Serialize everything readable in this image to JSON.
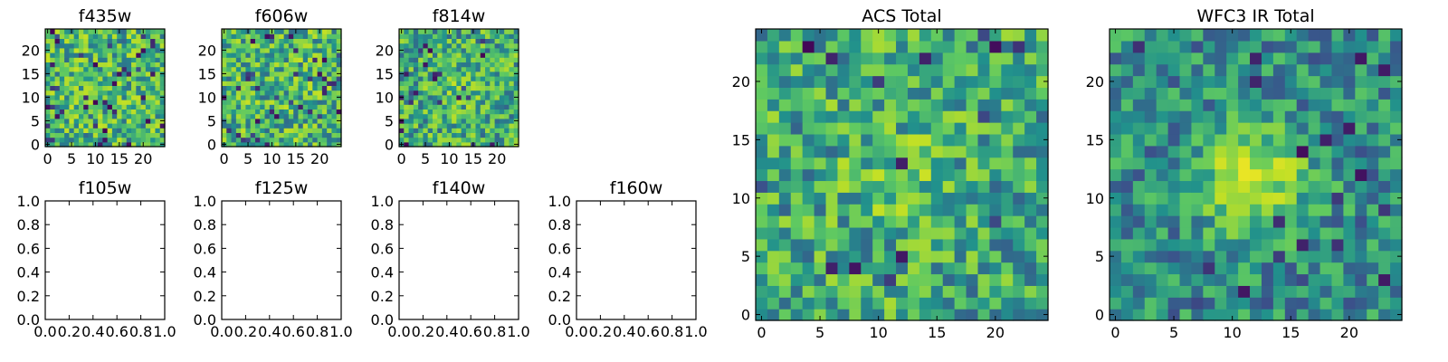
{
  "figure": {
    "background": "#ffffff"
  },
  "colormap": [
    "#440154",
    "#3b528b",
    "#21918c",
    "#5ec962",
    "#bddf26",
    "#fde725"
  ],
  "chart_data": [
    {
      "type": "heatmap",
      "title": "f435w",
      "grid_size": 25,
      "seed": 11,
      "blob": 0.0,
      "dark_fraction": 0.06,
      "xticks": [
        "0",
        "5",
        "10",
        "15",
        "20"
      ],
      "yticks": [
        "0",
        "5",
        "10",
        "15",
        "20"
      ]
    },
    {
      "type": "heatmap",
      "title": "f606w",
      "grid_size": 25,
      "seed": 23,
      "blob": 0.0,
      "dark_fraction": 0.05,
      "xticks": [
        "0",
        "5",
        "10",
        "15",
        "20"
      ],
      "yticks": [
        "0",
        "5",
        "10",
        "15",
        "20"
      ]
    },
    {
      "type": "heatmap",
      "title": "f814w",
      "grid_size": 25,
      "seed": 37,
      "blob": 0.2,
      "dark_fraction": 0.04,
      "xticks": [
        "0",
        "5",
        "10",
        "15",
        "20"
      ],
      "yticks": [
        "0",
        "5",
        "10",
        "15",
        "20"
      ]
    },
    {
      "type": "empty",
      "title": "f105w",
      "xlim": [
        0,
        1
      ],
      "ylim": [
        0,
        1
      ],
      "xticks": [
        "0.0",
        "0.2",
        "0.4",
        "0.6",
        "0.8",
        "1.0"
      ],
      "yticks": [
        "0.0",
        "0.2",
        "0.4",
        "0.6",
        "0.8",
        "1.0"
      ]
    },
    {
      "type": "empty",
      "title": "f125w",
      "xlim": [
        0,
        1
      ],
      "ylim": [
        0,
        1
      ],
      "xticks": [
        "0.0",
        "0.2",
        "0.4",
        "0.6",
        "0.8",
        "1.0"
      ],
      "yticks": [
        "0.0",
        "0.2",
        "0.4",
        "0.6",
        "0.8",
        "1.0"
      ]
    },
    {
      "type": "empty",
      "title": "f140w",
      "xlim": [
        0,
        1
      ],
      "ylim": [
        0,
        1
      ],
      "xticks": [
        "0.0",
        "0.2",
        "0.4",
        "0.6",
        "0.8",
        "1.0"
      ],
      "yticks": [
        "0.0",
        "0.2",
        "0.4",
        "0.6",
        "0.8",
        "1.0"
      ]
    },
    {
      "type": "empty",
      "title": "f160w",
      "xlim": [
        0,
        1
      ],
      "ylim": [
        0,
        1
      ],
      "xticks": [
        "0.0",
        "0.2",
        "0.4",
        "0.6",
        "0.8",
        "1.0"
      ],
      "yticks": [
        "0.0",
        "0.2",
        "0.4",
        "0.6",
        "0.8",
        "1.0"
      ]
    },
    {
      "type": "heatmap",
      "title": "ACS Total",
      "grid_size": 25,
      "seed": 53,
      "blob": 0.25,
      "dark_fraction": 0.03,
      "xticks": [
        "0",
        "5",
        "10",
        "15",
        "20"
      ],
      "yticks": [
        "0",
        "5",
        "10",
        "15",
        "20"
      ]
    },
    {
      "type": "heatmap",
      "title": "WFC3 IR Total",
      "grid_size": 25,
      "seed": 71,
      "blob": 0.9,
      "dark_fraction": 0.03,
      "xticks": [
        "0",
        "5",
        "10",
        "15",
        "20"
      ],
      "yticks": [
        "0",
        "5",
        "10",
        "15",
        "20"
      ]
    }
  ]
}
